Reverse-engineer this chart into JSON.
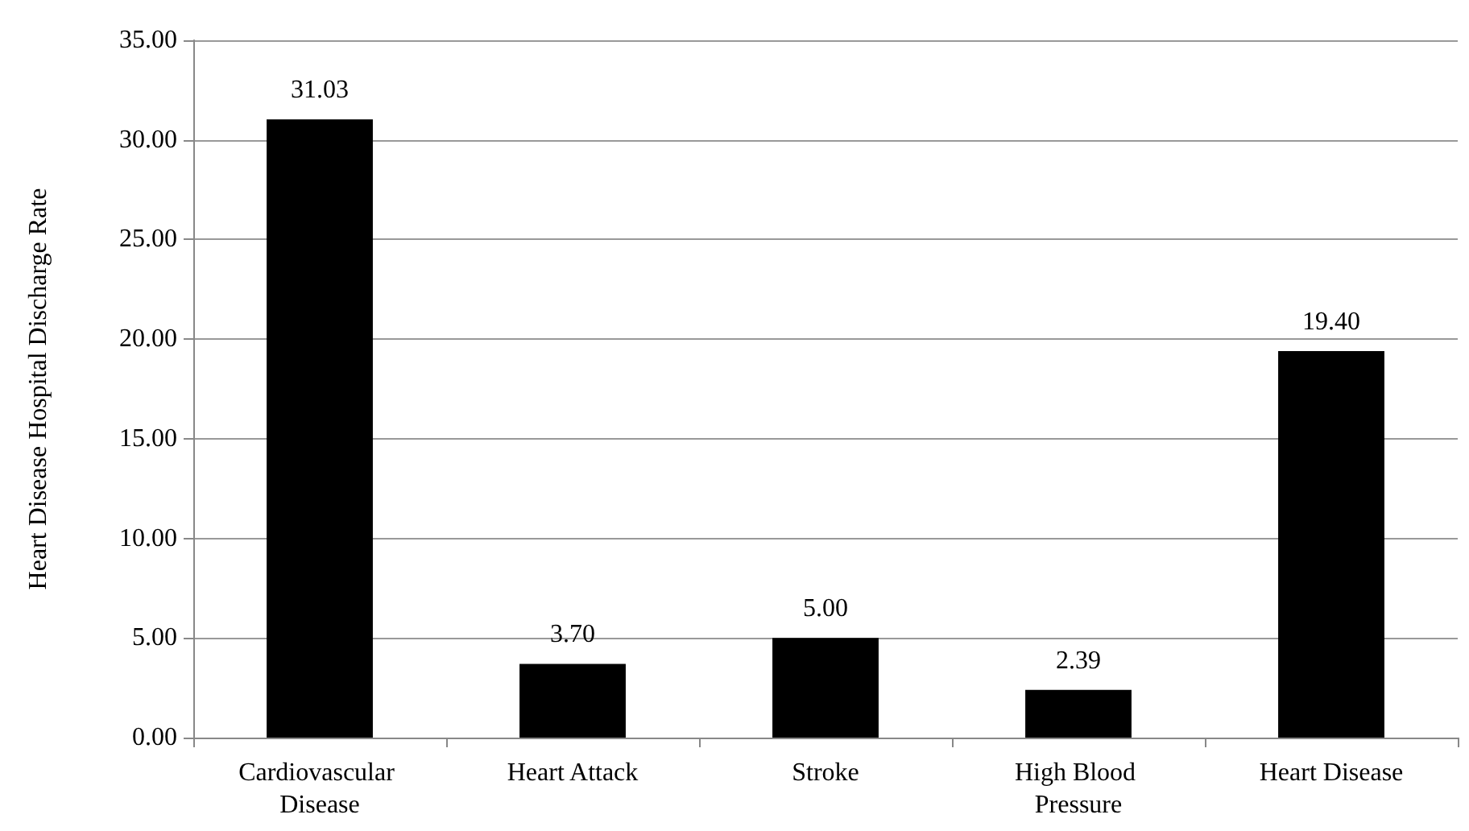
{
  "chart_data": {
    "type": "bar",
    "ylabel": "Heart Disease Hospital Discharge Rate",
    "categories": [
      "Cardiovascular Disease",
      "Heart Attack",
      "Stroke",
      "High Blood Pressure",
      "Heart Disease"
    ],
    "values": [
      31.03,
      3.7,
      5.0,
      2.39,
      19.4
    ],
    "value_labels": [
      "31.03",
      "3.70",
      "5.00",
      "2.39",
      "19.40"
    ],
    "color": "#000000",
    "ylim": [
      0,
      35
    ],
    "yticks": [
      {
        "value": 0,
        "label": "0.00"
      },
      {
        "value": 5,
        "label": "5.00"
      },
      {
        "value": 10,
        "label": "10.00"
      },
      {
        "value": 15,
        "label": "15.00"
      },
      {
        "value": 20,
        "label": "20.00"
      },
      {
        "value": 25,
        "label": "25.00"
      },
      {
        "value": 30,
        "label": "30.00"
      },
      {
        "value": 35,
        "label": "35.00"
      }
    ],
    "grid": "y"
  }
}
